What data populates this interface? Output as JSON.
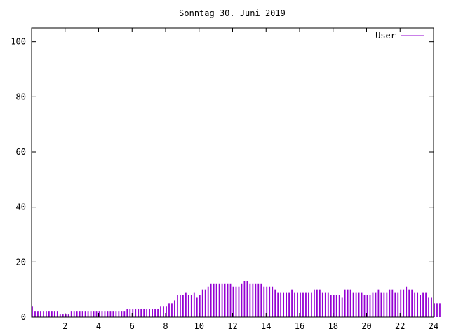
{
  "chart_data": {
    "type": "bar",
    "title": "Sonntag 30. Juni 2019",
    "xlabel": "",
    "ylabel": "",
    "xlim": [
      0,
      24
    ],
    "ylim": [
      0,
      105
    ],
    "x_ticks": [
      "2",
      "4",
      "6",
      "8",
      "10",
      "12",
      "14",
      "16",
      "18",
      "20",
      "22",
      "24"
    ],
    "y_ticks": [
      "0",
      "20",
      "40",
      "60",
      "80",
      "100"
    ],
    "grid": false,
    "legend": "top-right",
    "series": [
      {
        "name": "User",
        "color": "#9400d3",
        "interval_minutes": 10,
        "values": [
          4,
          2,
          2,
          2,
          2,
          2,
          2,
          2,
          2,
          2,
          1,
          1,
          1,
          1,
          2,
          2,
          2,
          2,
          2,
          2,
          2,
          2,
          2,
          2,
          2,
          2,
          2,
          2,
          2,
          2,
          2,
          2,
          2,
          2,
          3,
          3,
          3,
          3,
          3,
          3,
          3,
          3,
          3,
          3,
          3,
          3,
          4,
          4,
          4,
          5,
          5,
          6,
          8,
          8,
          8,
          9,
          8,
          8,
          9,
          7,
          8,
          10,
          10,
          11,
          12,
          12,
          12,
          12,
          12,
          12,
          12,
          12,
          11,
          11,
          11,
          12,
          13,
          13,
          12,
          12,
          12,
          12,
          12,
          11,
          11,
          11,
          11,
          10,
          9,
          9,
          9,
          9,
          9,
          10,
          9,
          9,
          9,
          9,
          9,
          9,
          9,
          10,
          10,
          10,
          9,
          9,
          9,
          8,
          8,
          8,
          8,
          7,
          10,
          10,
          10,
          9,
          9,
          9,
          9,
          8,
          8,
          8,
          9,
          9,
          10,
          9,
          9,
          9,
          10,
          10,
          9,
          9,
          10,
          10,
          11,
          10,
          10,
          9,
          9,
          8,
          9,
          9,
          7,
          7,
          5,
          5,
          5
        ]
      }
    ]
  }
}
